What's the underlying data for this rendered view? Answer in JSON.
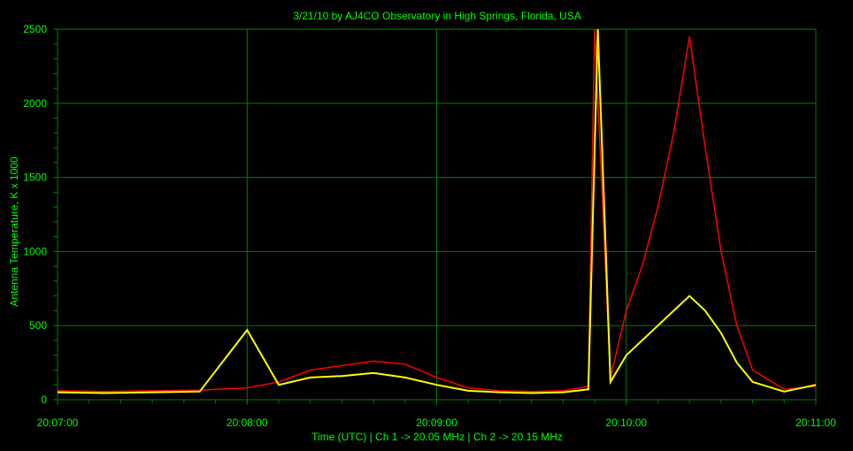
{
  "chart_data": {
    "type": "line",
    "title": "3/21/10  by  AJ4CO Observatory  in  High Springs, Florida, USA",
    "xlabel": "Time (UTC)  |  Ch 1 -> 20.05 MHz  |  Ch 2 -> 20.15 MHz",
    "ylabel": "Antenna Temperature, K x 1000",
    "xlim": [
      "20:07:00",
      "20:11:00"
    ],
    "ylim": [
      0,
      2500
    ],
    "x_ticks": [
      "20:07:00",
      "20:08:00",
      "20:09:00",
      "20:10:00",
      "20:11:00"
    ],
    "y_ticks": [
      0,
      500,
      1000,
      1500,
      2000,
      2500
    ],
    "grid": true,
    "colors": {
      "ch1": "#ff0000",
      "ch2": "#ffff00",
      "grid": "#008000",
      "text": "#00ff00",
      "background": "#000000"
    },
    "series": [
      {
        "name": "Ch 1 -> 20.05 MHz",
        "color": "#ff0000",
        "x": [
          "20:07:00",
          "20:07:15",
          "20:07:30",
          "20:07:45",
          "20:08:00",
          "20:08:10",
          "20:08:20",
          "20:08:30",
          "20:08:40",
          "20:08:50",
          "20:09:00",
          "20:09:10",
          "20:09:20",
          "20:09:30",
          "20:09:40",
          "20:09:48",
          "20:09:50",
          "20:09:55",
          "20:10:00",
          "20:10:05",
          "20:10:10",
          "20:10:15",
          "20:10:20",
          "20:10:25",
          "20:10:30",
          "20:10:35",
          "20:10:40",
          "20:10:50",
          "20:11:00"
        ],
        "values": [
          60,
          55,
          60,
          65,
          80,
          120,
          200,
          230,
          260,
          240,
          150,
          80,
          60,
          55,
          60,
          90,
          2500,
          150,
          600,
          900,
          1300,
          1800,
          2450,
          1700,
          1000,
          500,
          200,
          70,
          90
        ]
      },
      {
        "name": "Ch 2 -> 20.15 MHz",
        "color": "#ffff00",
        "x": [
          "20:07:00",
          "20:07:15",
          "20:07:30",
          "20:07:45",
          "20:08:00",
          "20:08:10",
          "20:08:20",
          "20:08:30",
          "20:08:40",
          "20:08:50",
          "20:09:00",
          "20:09:10",
          "20:09:20",
          "20:09:30",
          "20:09:40",
          "20:09:48",
          "20:09:51",
          "20:09:55",
          "20:10:00",
          "20:10:05",
          "20:10:10",
          "20:10:15",
          "20:10:20",
          "20:10:25",
          "20:10:30",
          "20:10:35",
          "20:10:40",
          "20:10:50",
          "20:11:00"
        ],
        "values": [
          50,
          45,
          50,
          55,
          470,
          100,
          150,
          160,
          180,
          150,
          100,
          60,
          50,
          45,
          50,
          70,
          2500,
          120,
          300,
          400,
          500,
          600,
          700,
          600,
          450,
          250,
          120,
          55,
          100
        ]
      }
    ]
  }
}
